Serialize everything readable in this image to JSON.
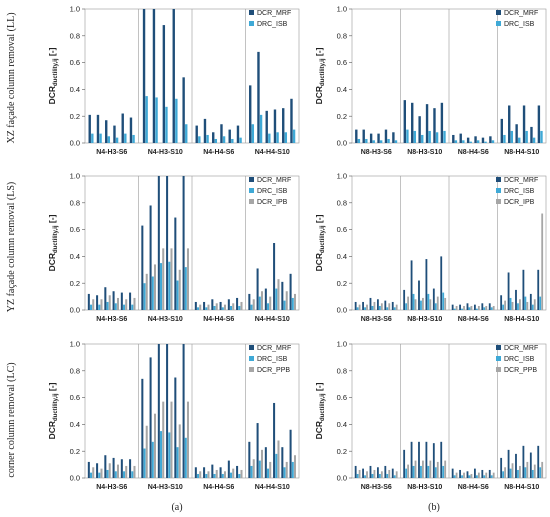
{
  "row_labels": [
    "XZ façade column removal (LL)",
    "YZ façade column removal (LS)",
    "corner column removal (LC)"
  ],
  "panel_labels": [
    "(a)",
    "(b)"
  ],
  "ylabel_main": "DCR",
  "ylabel_sub": "ductility,ij",
  "ylabel_unit": " [-]",
  "colors": {
    "MRF": "#1f4e79",
    "ISB": "#3fa9d6",
    "BR": "#a6a6a6"
  },
  "chart_data": [
    {
      "id": "LL-a",
      "type": "bar",
      "ylim": [
        0,
        1
      ],
      "yticks": [
        "0.0",
        "0.2",
        "0.4",
        "0.6",
        "0.8",
        "1.0"
      ],
      "groups": [
        "N4-H3-S6",
        "N4-H3-S10",
        "N4-H4-S6",
        "N4-H4-S10"
      ],
      "legend": [
        "DCR_MRF",
        "DRC_ISB"
      ],
      "series": [
        {
          "name": "DCR_MRF",
          "values": [
            [
              0.21,
              0.21,
              0.17,
              0.13,
              0.22,
              0.19
            ],
            [
              1.0,
              1.0,
              0.88,
              1.0,
              0.49
            ],
            [
              0.13,
              0.18,
              0.08,
              0.14,
              0.1,
              0.13
            ],
            [
              0.43,
              0.68,
              0.24,
              0.25,
              0.26,
              0.33
            ]
          ]
        },
        {
          "name": "DRC_ISB",
          "values": [
            [
              0.07,
              0.07,
              0.05,
              0.04,
              0.07,
              0.06
            ],
            [
              0.35,
              0.34,
              0.27,
              0.33,
              0.14
            ],
            [
              0.05,
              0.06,
              0.03,
              0.05,
              0.03,
              0.04
            ],
            [
              0.14,
              0.21,
              0.07,
              0.08,
              0.08,
              0.1
            ]
          ]
        }
      ]
    },
    {
      "id": "LL-b",
      "type": "bar",
      "ylim": [
        0,
        1
      ],
      "yticks": [
        "0.0",
        "0.2",
        "0.4",
        "0.6",
        "0.8",
        "1.0"
      ],
      "groups": [
        "N8-H3-S6",
        "N8-H3-S10",
        "N8-H4-S6",
        "N8-H4-S10"
      ],
      "legend": [
        "DCR_MRF",
        "DRC_ISB"
      ],
      "series": [
        {
          "name": "DCR_MRF",
          "values": [
            [
              0.1,
              0.1,
              0.07,
              0.07,
              0.1,
              0.08
            ],
            [
              0.32,
              0.3,
              0.2,
              0.29,
              0.26,
              0.3
            ],
            [
              0.06,
              0.07,
              0.04,
              0.05,
              0.04,
              0.05
            ],
            [
              0.18,
              0.28,
              0.14,
              0.28,
              0.12,
              0.28
            ]
          ]
        },
        {
          "name": "DRC_ISB",
          "values": [
            [
              0.03,
              0.03,
              0.02,
              0.02,
              0.03,
              0.02
            ],
            [
              0.1,
              0.09,
              0.06,
              0.09,
              0.08,
              0.09
            ],
            [
              0.02,
              0.02,
              0.01,
              0.02,
              0.01,
              0.02
            ],
            [
              0.06,
              0.09,
              0.04,
              0.09,
              0.04,
              0.09
            ]
          ]
        }
      ]
    },
    {
      "id": "LS-a",
      "type": "bar",
      "ylim": [
        0,
        1
      ],
      "yticks": [
        "0.0",
        "0.2",
        "0.4",
        "0.6",
        "0.8",
        "1.0"
      ],
      "groups": [
        "N4-H3-S6",
        "N4-H3-S10",
        "N4-H4-S6",
        "N4-H4-S10"
      ],
      "legend": [
        "DCR_MRF",
        "DRC_ISB",
        "DCR_IPB"
      ],
      "series": [
        {
          "name": "DCR_MRF",
          "values": [
            [
              0.12,
              0.11,
              0.17,
              0.14,
              0.13,
              0.13
            ],
            [
              0.63,
              0.78,
              1.0,
              1.0,
              0.69,
              1.0
            ],
            [
              0.06,
              0.06,
              0.08,
              0.06,
              0.08,
              0.09
            ],
            [
              0.12,
              0.31,
              0.16,
              0.5,
              0.21,
              0.27
            ]
          ]
        },
        {
          "name": "DRC_ISB",
          "values": [
            [
              0.04,
              0.04,
              0.06,
              0.05,
              0.04,
              0.04
            ],
            [
              0.2,
              0.25,
              0.35,
              0.36,
              0.22,
              0.32
            ],
            [
              0.02,
              0.02,
              0.03,
              0.02,
              0.03,
              0.03
            ],
            [
              0.04,
              0.1,
              0.05,
              0.16,
              0.07,
              0.09
            ]
          ]
        },
        {
          "name": "DCR_IPB",
          "values": [
            [
              0.08,
              0.08,
              0.11,
              0.09,
              0.08,
              0.09
            ],
            [
              0.27,
              0.34,
              0.46,
              0.46,
              0.3,
              0.46
            ],
            [
              0.04,
              0.04,
              0.05,
              0.04,
              0.05,
              0.06
            ],
            [
              0.08,
              0.14,
              0.1,
              0.23,
              0.14,
              0.12
            ]
          ]
        }
      ]
    },
    {
      "id": "LS-b",
      "type": "bar",
      "ylim": [
        0,
        1
      ],
      "yticks": [
        "0.0",
        "0.2",
        "0.4",
        "0.6",
        "0.8",
        "1.0"
      ],
      "groups": [
        "N8-H3-S6",
        "N8-H3-S10",
        "N8-H4-S6",
        "N8-H4-S10"
      ],
      "legend": [
        "DCR_MRF",
        "DRC_ISB",
        "DCR_IPB"
      ],
      "series": [
        {
          "name": "DCR_MRF",
          "values": [
            [
              0.06,
              0.06,
              0.09,
              0.08,
              0.07,
              0.06
            ],
            [
              0.15,
              0.37,
              0.22,
              0.38,
              0.16,
              0.4
            ],
            [
              0.04,
              0.04,
              0.05,
              0.04,
              0.05,
              0.05
            ],
            [
              0.11,
              0.28,
              0.15,
              0.3,
              0.12,
              0.3
            ]
          ]
        },
        {
          "name": "DRC_ISB",
          "values": [
            [
              0.02,
              0.02,
              0.03,
              0.03,
              0.02,
              0.02
            ],
            [
              0.05,
              0.12,
              0.07,
              0.12,
              0.05,
              0.13
            ],
            [
              0.01,
              0.01,
              0.02,
              0.01,
              0.02,
              0.02
            ],
            [
              0.04,
              0.09,
              0.05,
              0.1,
              0.04,
              0.1
            ]
          ]
        },
        {
          "name": "DCR_IPB",
          "values": [
            [
              0.04,
              0.04,
              0.06,
              0.05,
              0.05,
              0.04
            ],
            [
              0.1,
              0.08,
              0.09,
              0.08,
              0.1,
              0.09
            ],
            [
              0.03,
              0.03,
              0.03,
              0.03,
              0.03,
              0.03
            ],
            [
              0.07,
              0.06,
              0.08,
              0.06,
              0.08,
              0.72
            ]
          ]
        }
      ]
    },
    {
      "id": "LC-a",
      "type": "bar",
      "ylim": [
        0,
        1
      ],
      "yticks": [
        "0.0",
        "0.2",
        "0.4",
        "0.6",
        "0.8",
        "1.0"
      ],
      "groups": [
        "N4-H3-S6",
        "N4-H3-S10",
        "N4-H4-S6",
        "N4-H4-S10"
      ],
      "legend": [
        "DCR_MRF",
        "DRC_ISB",
        "DCR_PPB"
      ],
      "series": [
        {
          "name": "DCR_MRF",
          "values": [
            [
              0.12,
              0.11,
              0.17,
              0.15,
              0.14,
              0.14
            ],
            [
              0.74,
              0.9,
              1.0,
              1.0,
              0.75,
              1.0
            ],
            [
              0.08,
              0.08,
              0.1,
              0.08,
              0.13,
              0.09
            ],
            [
              0.27,
              0.41,
              0.23,
              0.56,
              0.23,
              0.36
            ]
          ]
        },
        {
          "name": "DRC_ISB",
          "values": [
            [
              0.04,
              0.04,
              0.06,
              0.05,
              0.05,
              0.05
            ],
            [
              0.22,
              0.27,
              0.35,
              0.34,
              0.23,
              0.3
            ],
            [
              0.03,
              0.03,
              0.03,
              0.03,
              0.04,
              0.03
            ],
            [
              0.09,
              0.13,
              0.07,
              0.18,
              0.08,
              0.12
            ]
          ]
        },
        {
          "name": "DCR_PPB",
          "values": [
            [
              0.08,
              0.07,
              0.11,
              0.1,
              0.09,
              0.09
            ],
            [
              0.39,
              0.48,
              0.57,
              0.57,
              0.4,
              0.57
            ],
            [
              0.05,
              0.05,
              0.06,
              0.05,
              0.07,
              0.06
            ],
            [
              0.14,
              0.21,
              0.12,
              0.28,
              0.12,
              0.17
            ]
          ]
        }
      ]
    },
    {
      "id": "LC-b",
      "type": "bar",
      "ylim": [
        0,
        1
      ],
      "yticks": [
        "0.0",
        "0.2",
        "0.4",
        "0.6",
        "0.8",
        "1.0"
      ],
      "groups": [
        "N8-H3-S6",
        "N8-H3-S10",
        "N8-H4-S6",
        "N8-H4-S10"
      ],
      "legend": [
        "DCR_MRF",
        "DRC_ISB",
        "DCR_PPB"
      ],
      "series": [
        {
          "name": "DCR_MRF",
          "values": [
            [
              0.09,
              0.07,
              0.09,
              0.08,
              0.09,
              0.07
            ],
            [
              0.21,
              0.27,
              0.27,
              0.27,
              0.26,
              0.27
            ],
            [
              0.07,
              0.06,
              0.05,
              0.07,
              0.06,
              0.06
            ],
            [
              0.15,
              0.21,
              0.18,
              0.24,
              0.19,
              0.24
            ]
          ]
        },
        {
          "name": "DRC_ISB",
          "values": [
            [
              0.03,
              0.02,
              0.03,
              0.03,
              0.03,
              0.02
            ],
            [
              0.07,
              0.09,
              0.09,
              0.09,
              0.08,
              0.09
            ],
            [
              0.02,
              0.02,
              0.02,
              0.02,
              0.02,
              0.02
            ],
            [
              0.05,
              0.07,
              0.06,
              0.08,
              0.06,
              0.08
            ]
          ]
        },
        {
          "name": "DCR_PPB",
          "values": [
            [
              0.06,
              0.05,
              0.06,
              0.05,
              0.06,
              0.05
            ],
            [
              0.1,
              0.13,
              0.13,
              0.13,
              0.12,
              0.13
            ],
            [
              0.04,
              0.04,
              0.03,
              0.04,
              0.04,
              0.04
            ],
            [
              0.08,
              0.11,
              0.09,
              0.12,
              0.1,
              0.12
            ]
          ]
        }
      ]
    }
  ]
}
